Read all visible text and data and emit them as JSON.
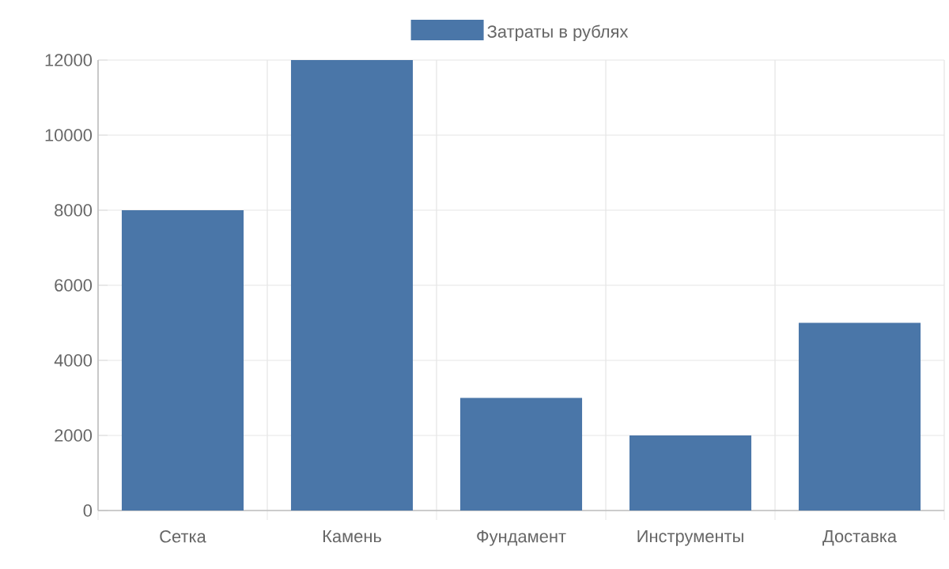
{
  "chart_data": {
    "type": "bar",
    "categories": [
      "Сетка",
      "Камень",
      "Фундамент",
      "Инструменты",
      "Доставка"
    ],
    "series": [
      {
        "name": "Затраты в рублях",
        "color": "#4a76a8",
        "values": [
          8000,
          12000,
          3000,
          2000,
          5000
        ]
      }
    ],
    "ylim": [
      0,
      12000
    ],
    "yticks": [
      0,
      2000,
      4000,
      6000,
      8000,
      10000,
      12000
    ],
    "grid": true,
    "legend": "top"
  }
}
